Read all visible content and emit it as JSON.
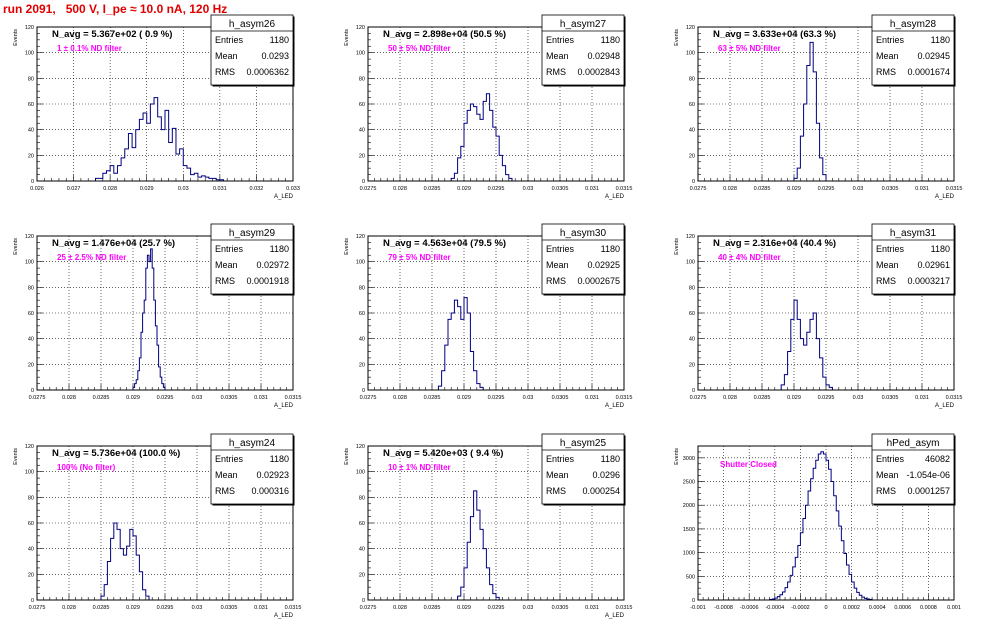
{
  "page": {
    "title": "run 2091,   500 V, I_pe ≈ 10.0 nA, 120 Hz",
    "title_color": "#e00000",
    "hist_color": "#000080",
    "annotation_color": "#ff00ff"
  },
  "chart_data": [
    {
      "type": "bar",
      "name": "h_asym26",
      "header": "N_avg = 5.367e+02 ( 0.9 %)",
      "annotation": "1 ± 0.1% ND filter",
      "stats": {
        "Entries": "1180",
        "Mean": "0.0293",
        "RMS": "0.0006362"
      },
      "xlim": [
        0.026,
        0.033
      ],
      "ylim": [
        0,
        120
      ],
      "xlabel": "A_LED",
      "ylabel": "Events",
      "xticks": [
        "0.026",
        "0.027",
        "0.028",
        "0.029",
        "0.03",
        "0.031",
        "0.032",
        "0.033"
      ],
      "yticks": [
        "0",
        "20",
        "40",
        "60",
        "80",
        "100",
        "120"
      ],
      "bins": {
        "start": 0.0276,
        "width": 0.0001,
        "values": [
          2,
          2,
          6,
          8,
          12,
          6,
          12,
          18,
          25,
          37,
          26,
          40,
          48,
          53,
          45,
          60,
          65,
          50,
          40,
          55,
          30,
          41,
          21,
          25,
          12,
          10,
          5,
          6,
          3,
          4,
          3,
          2,
          2,
          1,
          1
        ]
      }
    },
    {
      "type": "bar",
      "name": "h_asym27",
      "header": "N_avg = 2.898e+04 (50.5 %)",
      "annotation": "50 ± 5% ND filter",
      "stats": {
        "Entries": "1180",
        "Mean": "0.02948",
        "RMS": "0.0002843"
      },
      "xlim": [
        0.0275,
        0.0315
      ],
      "ylim": [
        0,
        120
      ],
      "xlabel": "A_LED",
      "ylabel": "Events",
      "xticks": [
        "0.0275",
        "0.028",
        "0.0285",
        "0.029",
        "0.0295",
        "0.03",
        "0.0305",
        "0.031",
        "0.0315"
      ],
      "yticks": [
        "0",
        "20",
        "40",
        "60",
        "80",
        "100",
        "120"
      ],
      "bins": {
        "start": 0.0288,
        "width": 5e-05,
        "values": [
          2,
          6,
          18,
          27,
          45,
          55,
          60,
          58,
          52,
          48,
          62,
          68,
          55,
          42,
          35,
          20,
          12,
          5,
          2
        ]
      }
    },
    {
      "type": "bar",
      "name": "h_asym28",
      "header": "N_avg = 3.633e+04 (63.3 %)",
      "annotation": "63 ± 5% ND filter",
      "stats": {
        "Entries": "1180",
        "Mean": "0.02945",
        "RMS": "0.0001674"
      },
      "xlim": [
        0.0275,
        0.0315
      ],
      "ylim": [
        0,
        120
      ],
      "xlabel": "A_LED",
      "ylabel": "Events",
      "xticks": [
        "0.0275",
        "0.028",
        "0.0285",
        "0.029",
        "0.0295",
        "0.03",
        "0.0305",
        "0.031",
        "0.0315"
      ],
      "yticks": [
        "0",
        "20",
        "40",
        "60",
        "80",
        "100",
        "120"
      ],
      "bins": {
        "start": 0.029,
        "width": 5e-05,
        "values": [
          2,
          10,
          35,
          60,
          90,
          108,
          85,
          45,
          18,
          5
        ]
      }
    },
    {
      "type": "bar",
      "name": "h_asym29",
      "header": "N_avg = 1.476e+04 (25.7 %)",
      "annotation": "25 ± 2.5% ND filter",
      "stats": {
        "Entries": "1180",
        "Mean": "0.02972",
        "RMS": "0.0001918"
      },
      "xlim": [
        0.0275,
        0.0315
      ],
      "ylim": [
        0,
        120
      ],
      "xlabel": "A_LED",
      "ylabel": "Events",
      "xticks": [
        "0.0275",
        "0.028",
        "0.0285",
        "0.029",
        "0.0295",
        "0.03",
        "0.0305",
        "0.031",
        "0.0315"
      ],
      "yticks": [
        "0",
        "20",
        "40",
        "60",
        "80",
        "100",
        "120"
      ],
      "bins": {
        "start": 0.029,
        "width": 2.5e-05,
        "values": [
          2,
          5,
          8,
          15,
          25,
          45,
          60,
          70,
          95,
          105,
          100,
          110,
          95,
          70,
          50,
          35,
          18,
          10,
          5,
          2
        ]
      }
    },
    {
      "type": "bar",
      "name": "h_asym30",
      "header": "N_avg = 4.563e+04 (79.5 %)",
      "annotation": "79 ± 5% ND filter",
      "stats": {
        "Entries": "1180",
        "Mean": "0.02925",
        "RMS": "0.0002675"
      },
      "xlim": [
        0.0275,
        0.0315
      ],
      "ylim": [
        0,
        120
      ],
      "xlabel": "A_LED",
      "ylabel": "Events",
      "xticks": [
        "0.0275",
        "0.028",
        "0.0285",
        "0.029",
        "0.0295",
        "0.03",
        "0.0305",
        "0.031",
        "0.0315"
      ],
      "yticks": [
        "0",
        "20",
        "40",
        "60",
        "80",
        "100",
        "120"
      ],
      "bins": {
        "start": 0.0286,
        "width": 5e-05,
        "values": [
          3,
          15,
          35,
          55,
          60,
          70,
          65,
          55,
          72,
          60,
          30,
          15,
          5,
          2
        ]
      }
    },
    {
      "type": "bar",
      "name": "h_asym31",
      "header": "N_avg = 2.316e+04 (40.4 %)",
      "annotation": "40 ± 4% ND filter",
      "stats": {
        "Entries": "1180",
        "Mean": "0.02961",
        "RMS": "0.0003217"
      },
      "xlim": [
        0.0275,
        0.0315
      ],
      "ylim": [
        0,
        120
      ],
      "xlabel": "A_LED",
      "ylabel": "Events",
      "xticks": [
        "0.0275",
        "0.028",
        "0.0285",
        "0.029",
        "0.0295",
        "0.03",
        "0.0305",
        "0.031",
        "0.0315"
      ],
      "yticks": [
        "0",
        "20",
        "40",
        "60",
        "80",
        "100",
        "120"
      ],
      "bins": {
        "start": 0.0288,
        "width": 5e-05,
        "values": [
          4,
          12,
          30,
          55,
          70,
          55,
          40,
          35,
          45,
          55,
          60,
          40,
          25,
          10,
          4,
          2
        ]
      }
    },
    {
      "type": "bar",
      "name": "h_asym24",
      "header": "N_avg = 5.736e+04 (100.0 %)",
      "annotation": "100% (No filter)",
      "stats": {
        "Entries": "1180",
        "Mean": "0.02923",
        "RMS": "0.000316"
      },
      "xlim": [
        0.0275,
        0.0315
      ],
      "ylim": [
        0,
        120
      ],
      "xlabel": "A_LED",
      "ylabel": "Events",
      "xticks": [
        "0.0275",
        "0.028",
        "0.0285",
        "0.029",
        "0.0295",
        "0.03",
        "0.0305",
        "0.031",
        "0.0315"
      ],
      "yticks": [
        "0",
        "20",
        "40",
        "60",
        "80",
        "100",
        "120"
      ],
      "bins": {
        "start": 0.0285,
        "width": 5e-05,
        "values": [
          3,
          12,
          30,
          48,
          60,
          55,
          40,
          35,
          42,
          55,
          50,
          35,
          22,
          8,
          3
        ]
      }
    },
    {
      "type": "bar",
      "name": "h_asym25",
      "header": "N_avg = 5.420e+03 ( 9.4 %)",
      "annotation": "10 ± 1% ND filter",
      "stats": {
        "Entries": "1180",
        "Mean": "0.0296",
        "RMS": "0.000254"
      },
      "xlim": [
        0.0275,
        0.0315
      ],
      "ylim": [
        0,
        120
      ],
      "xlabel": "A_LED",
      "ylabel": "Events",
      "xticks": [
        "0.0275",
        "0.028",
        "0.0285",
        "0.029",
        "0.0295",
        "0.03",
        "0.0305",
        "0.031",
        "0.0315"
      ],
      "yticks": [
        "0",
        "20",
        "40",
        "60",
        "80",
        "100",
        "120"
      ],
      "bins": {
        "start": 0.0289,
        "width": 5e-05,
        "values": [
          3,
          10,
          25,
          45,
          65,
          85,
          70,
          55,
          40,
          25,
          12,
          5,
          2
        ]
      }
    },
    {
      "type": "bar",
      "name": "hPed_asym",
      "header": "",
      "annotation": "Shutter Closed",
      "stats": {
        "Entries": "46082",
        "Mean": "-1.054e-06",
        "RMS": "0.0001257"
      },
      "xlim": [
        -0.001,
        0.001
      ],
      "ylim": [
        0,
        3250
      ],
      "xlabel": "",
      "ylabel": "Events",
      "xticks": [
        "-0.001",
        "-0.0008",
        "-0.0006",
        "-0.0004",
        "-0.0002",
        "0",
        "0.0002",
        "0.0004",
        "0.0006",
        "0.0008",
        "0.001"
      ],
      "yticks": [
        "0",
        "500",
        "1000",
        "1500",
        "2000",
        "2500",
        "3000"
      ],
      "bins": {
        "start": -0.00044,
        "width": 2e-05,
        "values": [
          10,
          20,
          40,
          70,
          110,
          170,
          260,
          380,
          520,
          700,
          900,
          1150,
          1420,
          1720,
          2000,
          2300,
          2560,
          2780,
          2950,
          3080,
          3130,
          3080,
          2950,
          2760,
          2500,
          2200,
          1880,
          1560,
          1250,
          980,
          740,
          540,
          380,
          250,
          160,
          100,
          60,
          35,
          20,
          10
        ]
      }
    }
  ]
}
